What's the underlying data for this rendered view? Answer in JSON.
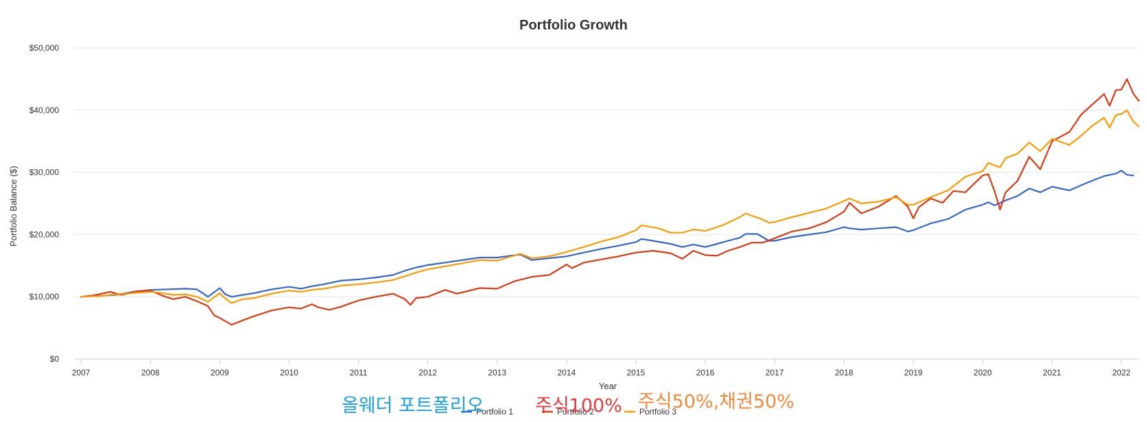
{
  "chart_data": {
    "type": "line",
    "title": "Portfolio Growth",
    "xlabel": "Year",
    "ylabel": "Portfolio Balance ($)",
    "xlim": [
      2006.9,
      2022.25
    ],
    "ylim": [
      0,
      50000
    ],
    "xticks": [
      "2007",
      "2008",
      "2009",
      "2010",
      "2011",
      "2012",
      "2013",
      "2014",
      "2015",
      "2016",
      "2017",
      "2018",
      "2019",
      "2020",
      "2021",
      "2022"
    ],
    "yticks": [
      "$0",
      "$10,000",
      "$20,000",
      "$30,000",
      "$40,000",
      "$50,000"
    ],
    "grid": true,
    "legend_position": "bottom-center",
    "series": [
      {
        "name": "Portfolio 1",
        "color": "#3366cc",
        "points": [
          [
            2007.0,
            10000
          ],
          [
            2007.25,
            10150
          ],
          [
            2007.5,
            10300
          ],
          [
            2007.75,
            10800
          ],
          [
            2008.0,
            11100
          ],
          [
            2008.25,
            11200
          ],
          [
            2008.5,
            11300
          ],
          [
            2008.67,
            11200
          ],
          [
            2008.83,
            10000
          ],
          [
            2009.0,
            11400
          ],
          [
            2009.08,
            10400
          ],
          [
            2009.17,
            10000
          ],
          [
            2009.33,
            10300
          ],
          [
            2009.5,
            10600
          ],
          [
            2009.75,
            11200
          ],
          [
            2010.0,
            11600
          ],
          [
            2010.17,
            11300
          ],
          [
            2010.33,
            11700
          ],
          [
            2010.5,
            12000
          ],
          [
            2010.75,
            12600
          ],
          [
            2011.0,
            12800
          ],
          [
            2011.25,
            13100
          ],
          [
            2011.5,
            13500
          ],
          [
            2011.67,
            14200
          ],
          [
            2011.83,
            14700
          ],
          [
            2012.0,
            15100
          ],
          [
            2012.25,
            15500
          ],
          [
            2012.5,
            15900
          ],
          [
            2012.75,
            16300
          ],
          [
            2013.0,
            16300
          ],
          [
            2013.33,
            16800
          ],
          [
            2013.5,
            15900
          ],
          [
            2013.75,
            16200
          ],
          [
            2014.0,
            16500
          ],
          [
            2014.25,
            17100
          ],
          [
            2014.5,
            17700
          ],
          [
            2014.75,
            18200
          ],
          [
            2015.0,
            18800
          ],
          [
            2015.08,
            19300
          ],
          [
            2015.25,
            19000
          ],
          [
            2015.5,
            18500
          ],
          [
            2015.67,
            18000
          ],
          [
            2015.83,
            18400
          ],
          [
            2016.0,
            18000
          ],
          [
            2016.17,
            18500
          ],
          [
            2016.33,
            19000
          ],
          [
            2016.5,
            19500
          ],
          [
            2016.58,
            20100
          ],
          [
            2016.75,
            20100
          ],
          [
            2016.92,
            19000
          ],
          [
            2017.0,
            19000
          ],
          [
            2017.25,
            19600
          ],
          [
            2017.5,
            20000
          ],
          [
            2017.75,
            20400
          ],
          [
            2018.0,
            21200
          ],
          [
            2018.08,
            21000
          ],
          [
            2018.25,
            20800
          ],
          [
            2018.5,
            21000
          ],
          [
            2018.75,
            21200
          ],
          [
            2018.92,
            20500
          ],
          [
            2019.0,
            20700
          ],
          [
            2019.25,
            21800
          ],
          [
            2019.5,
            22500
          ],
          [
            2019.75,
            24000
          ],
          [
            2020.0,
            24800
          ],
          [
            2020.08,
            25200
          ],
          [
            2020.17,
            24700
          ],
          [
            2020.33,
            25500
          ],
          [
            2020.5,
            26200
          ],
          [
            2020.67,
            27400
          ],
          [
            2020.83,
            26800
          ],
          [
            2021.0,
            27700
          ],
          [
            2021.25,
            27100
          ],
          [
            2021.5,
            28300
          ],
          [
            2021.75,
            29400
          ],
          [
            2021.92,
            29800
          ],
          [
            2022.0,
            30300
          ],
          [
            2022.08,
            29600
          ],
          [
            2022.17,
            29500
          ]
        ]
      },
      {
        "name": "Portfolio 2",
        "color": "#dc3912",
        "points": [
          [
            2007.0,
            10000
          ],
          [
            2007.17,
            10200
          ],
          [
            2007.42,
            10800
          ],
          [
            2007.58,
            10300
          ],
          [
            2007.83,
            10900
          ],
          [
            2008.0,
            11000
          ],
          [
            2008.17,
            10200
          ],
          [
            2008.33,
            9600
          ],
          [
            2008.5,
            10000
          ],
          [
            2008.67,
            9300
          ],
          [
            2008.83,
            8500
          ],
          [
            2008.92,
            7000
          ],
          [
            2009.0,
            6600
          ],
          [
            2009.17,
            5500
          ],
          [
            2009.33,
            6200
          ],
          [
            2009.5,
            6900
          ],
          [
            2009.75,
            7800
          ],
          [
            2010.0,
            8300
          ],
          [
            2010.17,
            8100
          ],
          [
            2010.33,
            8800
          ],
          [
            2010.42,
            8300
          ],
          [
            2010.58,
            7900
          ],
          [
            2010.75,
            8400
          ],
          [
            2011.0,
            9400
          ],
          [
            2011.25,
            10000
          ],
          [
            2011.5,
            10500
          ],
          [
            2011.67,
            9600
          ],
          [
            2011.75,
            8700
          ],
          [
            2011.83,
            9800
          ],
          [
            2012.0,
            10000
          ],
          [
            2012.25,
            11100
          ],
          [
            2012.42,
            10500
          ],
          [
            2012.75,
            11400
          ],
          [
            2013.0,
            11300
          ],
          [
            2013.25,
            12500
          ],
          [
            2013.5,
            13200
          ],
          [
            2013.75,
            13500
          ],
          [
            2014.0,
            15200
          ],
          [
            2014.08,
            14600
          ],
          [
            2014.25,
            15500
          ],
          [
            2014.5,
            16000
          ],
          [
            2014.75,
            16500
          ],
          [
            2015.0,
            17100
          ],
          [
            2015.25,
            17400
          ],
          [
            2015.5,
            17000
          ],
          [
            2015.67,
            16100
          ],
          [
            2015.83,
            17400
          ],
          [
            2016.0,
            16700
          ],
          [
            2016.17,
            16600
          ],
          [
            2016.33,
            17400
          ],
          [
            2016.5,
            18000
          ],
          [
            2016.67,
            18700
          ],
          [
            2016.83,
            18700
          ],
          [
            2017.0,
            19400
          ],
          [
            2017.25,
            20500
          ],
          [
            2017.5,
            21000
          ],
          [
            2017.75,
            22000
          ],
          [
            2018.0,
            23700
          ],
          [
            2018.08,
            25100
          ],
          [
            2018.25,
            23400
          ],
          [
            2018.5,
            24500
          ],
          [
            2018.75,
            26200
          ],
          [
            2018.92,
            24500
          ],
          [
            2019.0,
            22600
          ],
          [
            2019.08,
            24400
          ],
          [
            2019.25,
            25800
          ],
          [
            2019.42,
            25100
          ],
          [
            2019.58,
            27000
          ],
          [
            2019.75,
            26800
          ],
          [
            2020.0,
            29500
          ],
          [
            2020.08,
            29700
          ],
          [
            2020.17,
            27000
          ],
          [
            2020.25,
            24000
          ],
          [
            2020.33,
            26800
          ],
          [
            2020.5,
            28600
          ],
          [
            2020.67,
            32500
          ],
          [
            2020.83,
            30500
          ],
          [
            2021.0,
            35000
          ],
          [
            2021.25,
            36500
          ],
          [
            2021.42,
            39300
          ],
          [
            2021.58,
            40900
          ],
          [
            2021.75,
            42600
          ],
          [
            2021.83,
            40700
          ],
          [
            2021.92,
            43200
          ],
          [
            2022.0,
            43300
          ],
          [
            2022.08,
            45000
          ],
          [
            2022.17,
            42700
          ],
          [
            2022.25,
            41500
          ]
        ]
      },
      {
        "name": "Portfolio 3",
        "color": "#ff9900",
        "points": [
          [
            2007.0,
            10000
          ],
          [
            2007.25,
            10100
          ],
          [
            2007.5,
            10400
          ],
          [
            2007.75,
            10600
          ],
          [
            2008.0,
            10800
          ],
          [
            2008.17,
            10600
          ],
          [
            2008.33,
            10300
          ],
          [
            2008.5,
            10400
          ],
          [
            2008.67,
            10000
          ],
          [
            2008.83,
            9200
          ],
          [
            2009.0,
            10600
          ],
          [
            2009.08,
            9700
          ],
          [
            2009.17,
            9000
          ],
          [
            2009.33,
            9600
          ],
          [
            2009.5,
            9800
          ],
          [
            2009.75,
            10500
          ],
          [
            2010.0,
            11000
          ],
          [
            2010.17,
            10800
          ],
          [
            2010.33,
            11100
          ],
          [
            2010.5,
            11300
          ],
          [
            2010.75,
            11800
          ],
          [
            2011.0,
            12000
          ],
          [
            2011.25,
            12300
          ],
          [
            2011.5,
            12700
          ],
          [
            2011.67,
            13300
          ],
          [
            2011.83,
            13900
          ],
          [
            2012.0,
            14400
          ],
          [
            2012.25,
            14900
          ],
          [
            2012.5,
            15400
          ],
          [
            2012.75,
            15900
          ],
          [
            2013.0,
            15800
          ],
          [
            2013.33,
            16900
          ],
          [
            2013.5,
            16200
          ],
          [
            2013.75,
            16500
          ],
          [
            2014.0,
            17200
          ],
          [
            2014.25,
            18000
          ],
          [
            2014.5,
            18900
          ],
          [
            2014.75,
            19600
          ],
          [
            2015.0,
            20700
          ],
          [
            2015.08,
            21500
          ],
          [
            2015.33,
            21000
          ],
          [
            2015.5,
            20300
          ],
          [
            2015.67,
            20300
          ],
          [
            2015.83,
            20800
          ],
          [
            2016.0,
            20600
          ],
          [
            2016.25,
            21500
          ],
          [
            2016.5,
            22800
          ],
          [
            2016.58,
            23400
          ],
          [
            2016.83,
            22400
          ],
          [
            2016.92,
            21900
          ],
          [
            2017.0,
            22000
          ],
          [
            2017.25,
            22800
          ],
          [
            2017.5,
            23500
          ],
          [
            2017.75,
            24200
          ],
          [
            2018.0,
            25400
          ],
          [
            2018.08,
            25800
          ],
          [
            2018.25,
            25000
          ],
          [
            2018.5,
            25300
          ],
          [
            2018.75,
            26000
          ],
          [
            2018.92,
            24800
          ],
          [
            2019.0,
            24800
          ],
          [
            2019.25,
            26000
          ],
          [
            2019.5,
            27100
          ],
          [
            2019.75,
            29300
          ],
          [
            2020.0,
            30200
          ],
          [
            2020.08,
            31500
          ],
          [
            2020.25,
            30800
          ],
          [
            2020.33,
            32300
          ],
          [
            2020.5,
            33000
          ],
          [
            2020.67,
            34800
          ],
          [
            2020.83,
            33400
          ],
          [
            2021.0,
            35400
          ],
          [
            2021.25,
            34400
          ],
          [
            2021.42,
            35900
          ],
          [
            2021.58,
            37500
          ],
          [
            2021.75,
            38800
          ],
          [
            2021.83,
            37200
          ],
          [
            2021.92,
            39200
          ],
          [
            2022.0,
            39400
          ],
          [
            2022.08,
            40000
          ],
          [
            2022.17,
            38200
          ],
          [
            2022.25,
            37400
          ]
        ]
      }
    ]
  },
  "overlay_labels": [
    {
      "text": "올웨더 포트폴리오",
      "color": "#1ca0e4"
    },
    {
      "text": "주식100%",
      "color": "#e83a3a"
    },
    {
      "text": "주식50%,채권50%",
      "color": "#f4883a"
    }
  ]
}
